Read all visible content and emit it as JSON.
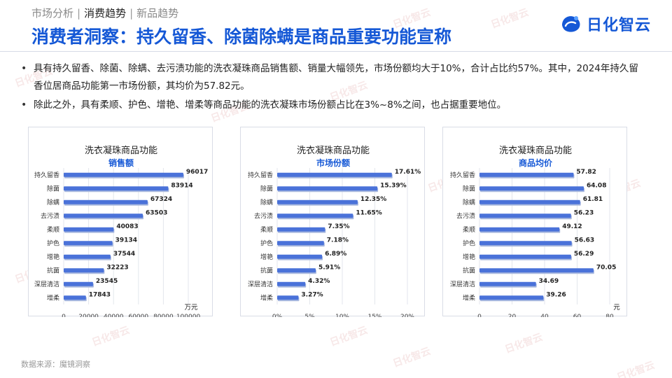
{
  "header": {
    "breadcrumb": [
      "市场分析",
      "消费趋势",
      "新品趋势"
    ],
    "breadcrumb_active_index": 1,
    "title": "消费者洞察：持久留香、除菌除螨是商品重要功能宣称",
    "logo_text": "日化智云"
  },
  "bullets": [
    "具有持久留香、除菌、除螨、去污渍功能的洗衣凝珠商品销售额、销量大幅领先，市场份额均大于10%，合计占比约57%。其中，2024年持久留香位居商品功能第一市场份额，其均价为57.82元。",
    "除此之外，具有柔顺、护色、增艳、增柔等商品功能的洗衣凝珠市场份额占比在3%~8%之间，也占据重要地位。"
  ],
  "watermark_text": "日化智云",
  "source": "数据来源：魔镜洞察",
  "colors": {
    "accent": "#1558d6",
    "bar": "#4a72d9",
    "bar_shadow": "#a8b8de",
    "grid": "#e3e6ec",
    "divider": "#d6dbe6",
    "panel_border": "#d9dde6"
  },
  "chart_data": [
    {
      "type": "bar",
      "orientation": "horizontal",
      "title": "洗衣凝珠商品功能",
      "subtitle": "销售额",
      "unit": "万元",
      "categories": [
        "持久留香",
        "除菌",
        "除螨",
        "去污渍",
        "柔顺",
        "护色",
        "增艳",
        "抗菌",
        "深层清洁",
        "增柔"
      ],
      "values": [
        96017,
        83914,
        67324,
        63503,
        40083,
        39134,
        37544,
        32223,
        23545,
        17843
      ],
      "value_labels": [
        "96017",
        "83914",
        "67324",
        "63503",
        "40083",
        "39134",
        "37544",
        "32223",
        "23545",
        "17843"
      ],
      "xlim": [
        0,
        100000
      ],
      "xticks": [
        0,
        20000,
        40000,
        60000,
        80000,
        100000
      ],
      "xtick_labels": [
        "0",
        "20000",
        "40000",
        "60000",
        "80000",
        "100000"
      ],
      "grid": true
    },
    {
      "type": "bar",
      "orientation": "horizontal",
      "title": "洗衣凝珠商品功能",
      "subtitle": "市场份额",
      "unit": "",
      "categories": [
        "持久留香",
        "除菌",
        "除螨",
        "去污渍",
        "柔顺",
        "护色",
        "增艳",
        "抗菌",
        "深层清洁",
        "增柔"
      ],
      "values": [
        17.61,
        15.39,
        12.35,
        11.65,
        7.35,
        7.18,
        6.89,
        5.91,
        4.32,
        3.27
      ],
      "value_labels": [
        "17.61%",
        "15.39%",
        "12.35%",
        "11.65%",
        "7.35%",
        "7.18%",
        "6.89%",
        "5.91%",
        "4.32%",
        "3.27%"
      ],
      "xlim": [
        0,
        20
      ],
      "xticks": [
        0,
        5,
        10,
        15,
        20
      ],
      "xtick_labels": [
        "0%",
        "5%",
        "10%",
        "15%",
        "20%"
      ],
      "grid": true
    },
    {
      "type": "bar",
      "orientation": "horizontal",
      "title": "洗衣凝珠商品功能",
      "subtitle": "商品均价",
      "unit": "元",
      "categories": [
        "持久留香",
        "除菌",
        "除螨",
        "去污渍",
        "柔顺",
        "护色",
        "增艳",
        "抗菌",
        "深层清洁",
        "增柔"
      ],
      "values": [
        57.82,
        64.08,
        61.81,
        56.23,
        49.12,
        56.63,
        56.29,
        70.05,
        34.69,
        39.26
      ],
      "value_labels": [
        "57.82",
        "64.08",
        "61.81",
        "56.23",
        "49.12",
        "56.63",
        "56.29",
        "70.05",
        "34.69",
        "39.26"
      ],
      "xlim": [
        0,
        80
      ],
      "xticks": [
        0,
        20,
        40,
        60,
        80
      ],
      "xtick_labels": [
        "0",
        "20",
        "40",
        "60",
        "80"
      ],
      "grid": true
    }
  ]
}
